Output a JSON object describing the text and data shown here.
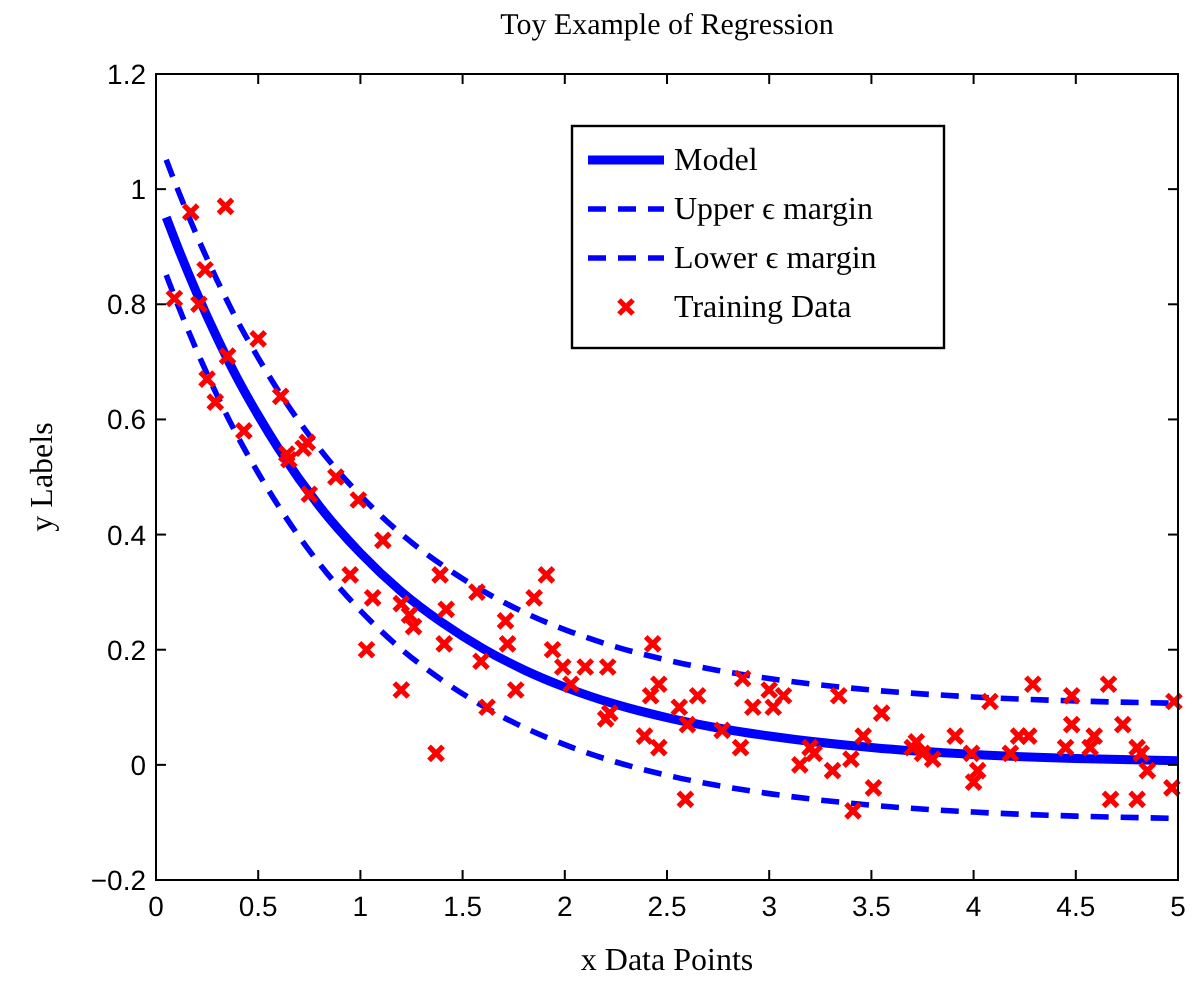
{
  "chart_data": {
    "type": "line",
    "title": "Toy Example of Regression",
    "xlabel": "x Data Points",
    "ylabel": "y Labels",
    "xlim": [
      0,
      5
    ],
    "xticks": [
      0,
      0.5,
      1,
      1.5,
      2,
      2.5,
      3,
      3.5,
      4,
      4.5,
      5
    ],
    "ylim": [
      -0.2,
      1.2
    ],
    "yticks": [
      {
        "value": -0.2,
        "label": "−0.2"
      },
      0,
      0.2,
      0.4,
      0.6,
      0.8,
      1,
      1.2
    ],
    "grid": false,
    "legend": "top right",
    "series": [
      {
        "name": "Model",
        "type": "line",
        "color": "#0000ff",
        "line_style": "solid",
        "marker": "none",
        "x": [
          0.05,
          0.1,
          0.2,
          0.3,
          0.4,
          0.5,
          0.6,
          0.8,
          1.0,
          1.2,
          1.4,
          1.6,
          1.8,
          2.0,
          2.25,
          2.5,
          2.75,
          3.0,
          3.5,
          4.0,
          4.5,
          5.0
        ],
        "values": [
          0.951,
          0.905,
          0.819,
          0.741,
          0.67,
          0.607,
          0.549,
          0.449,
          0.368,
          0.301,
          0.247,
          0.202,
          0.165,
          0.135,
          0.105,
          0.082,
          0.064,
          0.05,
          0.03,
          0.018,
          0.011,
          0.007
        ]
      },
      {
        "name": "Upper ϵ margin",
        "type": "line",
        "color": "#0000ff",
        "line_style": "dashed",
        "marker": "none",
        "x": [
          0.05,
          0.1,
          0.2,
          0.3,
          0.4,
          0.5,
          0.6,
          0.8,
          1.0,
          1.2,
          1.4,
          1.6,
          1.8,
          2.0,
          2.25,
          2.5,
          2.75,
          3.0,
          3.5,
          4.0,
          4.5,
          5.0
        ],
        "values": [
          1.051,
          1.005,
          0.919,
          0.841,
          0.77,
          0.707,
          0.649,
          0.549,
          0.468,
          0.401,
          0.347,
          0.302,
          0.265,
          0.235,
          0.205,
          0.182,
          0.164,
          0.15,
          0.13,
          0.118,
          0.111,
          0.107
        ]
      },
      {
        "name": "Lower ϵ margin",
        "type": "line",
        "color": "#0000ff",
        "line_style": "dashed",
        "marker": "none",
        "x": [
          0.05,
          0.1,
          0.2,
          0.3,
          0.4,
          0.5,
          0.6,
          0.8,
          1.0,
          1.2,
          1.4,
          1.6,
          1.8,
          2.0,
          2.25,
          2.5,
          2.75,
          3.0,
          3.5,
          4.0,
          4.5,
          5.0
        ],
        "values": [
          0.851,
          0.805,
          0.719,
          0.641,
          0.57,
          0.507,
          0.449,
          0.349,
          0.268,
          0.201,
          0.147,
          0.102,
          0.065,
          0.035,
          0.005,
          -0.018,
          -0.036,
          -0.05,
          -0.07,
          -0.082,
          -0.089,
          -0.093
        ]
      },
      {
        "name": "Training Data",
        "type": "scatter",
        "color": "#ff0000",
        "marker": "cross",
        "x": [
          0.09,
          0.17,
          0.34,
          0.21,
          0.24,
          0.25,
          0.29,
          0.35,
          0.43,
          0.5,
          0.61,
          0.64,
          0.65,
          0.72,
          0.74,
          0.75,
          0.88,
          0.99,
          1.11,
          0.95,
          1.06,
          1.03,
          1.2,
          1.24,
          1.26,
          1.2,
          1.39,
          1.42,
          1.41,
          1.37,
          1.57,
          1.59,
          1.62,
          1.71,
          1.72,
          1.76,
          1.85,
          1.91,
          1.94,
          1.99,
          2.03,
          2.1,
          2.21,
          2.2,
          2.22,
          2.43,
          2.42,
          2.46,
          2.39,
          2.46,
          2.56,
          2.6,
          2.59,
          2.65,
          2.77,
          2.86,
          2.87,
          2.92,
          3.0,
          3.02,
          3.07,
          3.15,
          3.2,
          3.22,
          3.31,
          3.34,
          3.4,
          3.41,
          3.46,
          3.51,
          3.55,
          3.7,
          3.72,
          3.75,
          3.8,
          3.91,
          3.99,
          4.02,
          4.0,
          4.08,
          4.18,
          4.22,
          4.27,
          4.29,
          4.45,
          4.48,
          4.48,
          4.57,
          4.59,
          4.66,
          4.67,
          4.73,
          4.8,
          4.8,
          4.82,
          4.85,
          4.97,
          4.98
        ],
        "values": [
          0.81,
          0.96,
          0.97,
          0.8,
          0.86,
          0.67,
          0.63,
          0.71,
          0.58,
          0.74,
          0.64,
          0.54,
          0.53,
          0.55,
          0.56,
          0.47,
          0.5,
          0.46,
          0.39,
          0.33,
          0.29,
          0.2,
          0.28,
          0.26,
          0.24,
          0.13,
          0.33,
          0.27,
          0.21,
          0.02,
          0.3,
          0.18,
          0.1,
          0.25,
          0.21,
          0.13,
          0.29,
          0.33,
          0.2,
          0.17,
          0.14,
          0.17,
          0.17,
          0.08,
          0.09,
          0.21,
          0.12,
          0.14,
          0.05,
          0.03,
          0.1,
          0.07,
          -0.06,
          0.12,
          0.06,
          0.03,
          0.15,
          0.1,
          0.13,
          0.1,
          0.12,
          0.0,
          0.03,
          0.02,
          -0.01,
          0.12,
          0.01,
          -0.08,
          0.05,
          -0.04,
          0.09,
          0.03,
          0.04,
          0.02,
          0.01,
          0.05,
          0.02,
          -0.01,
          -0.03,
          0.11,
          0.02,
          0.05,
          0.05,
          0.14,
          0.03,
          0.07,
          0.12,
          0.03,
          0.05,
          0.14,
          -0.06,
          0.07,
          0.03,
          -0.06,
          0.02,
          -0.01,
          -0.04,
          0.11
        ]
      }
    ]
  }
}
